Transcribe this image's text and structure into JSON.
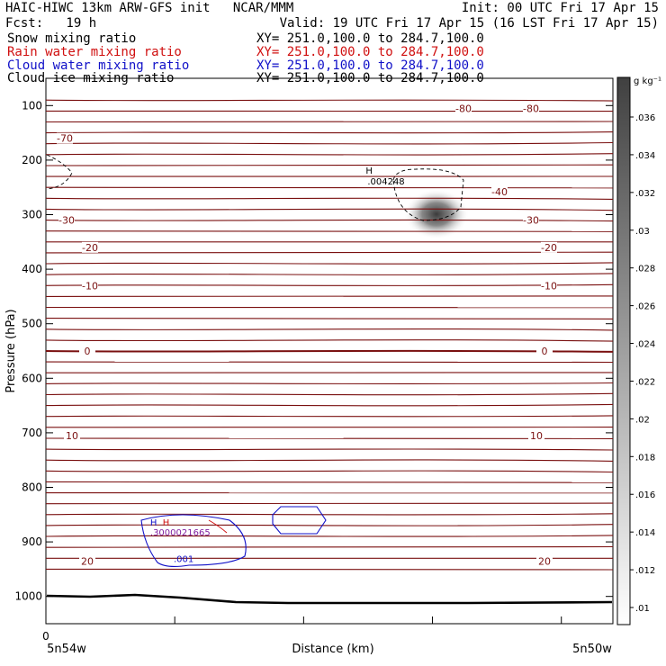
{
  "header": {
    "title": "HAIC-HIWC 13km ARW-GFS init   NCAR/MMM",
    "init": "Init: 00 UTC Fri 17 Apr 15",
    "fcst": "Fcst:   19 h",
    "valid": "Valid: 19 UTC Fri 17 Apr 15 (16 LST Fri 17 Apr 15)"
  },
  "fields": [
    {
      "name": "Snow mixing ratio",
      "xy": "XY= 251.0,100.0 to 284.7,100.0",
      "color": "#000000"
    },
    {
      "name": "Rain water mixing ratio",
      "xy": "XY= 251.0,100.0 to 284.7,100.0",
      "color": "#d01010"
    },
    {
      "name": "Cloud water mixing ratio",
      "xy": "XY= 251.0,100.0 to 284.7,100.0",
      "color": "#1010c8"
    },
    {
      "name": "Cloud ice mixing ratio",
      "xy": "XY= 251.0,100.0 to 284.7,100.0",
      "color": "#000000"
    }
  ],
  "chart_data": {
    "type": "contour",
    "xlabel": "Distance (km)",
    "ylabel": "Pressure (hPa)",
    "x_start_label": "0",
    "x_left_label": "5n54w",
    "x_right_label": "5n50w",
    "ylim": [
      1050,
      50
    ],
    "y_ticks": [
      100,
      200,
      300,
      400,
      500,
      600,
      700,
      800,
      900,
      1000
    ],
    "colorbar": {
      "unit": "g kg⁻¹",
      "levels": [
        ".01",
        ".012",
        ".014",
        ".016",
        ".018",
        ".02",
        ".022",
        ".024",
        ".026",
        ".028",
        ".03",
        ".032",
        ".034",
        ".036"
      ]
    },
    "temperature_contours": [
      {
        "value": "-80",
        "pressure": 105
      },
      {
        "value": "-70",
        "pressure": 160
      },
      {
        "value": "-40",
        "pressure": 258
      },
      {
        "value": "-30",
        "pressure": 310
      },
      {
        "value": "-20",
        "pressure": 360
      },
      {
        "value": "-10",
        "pressure": 430
      },
      {
        "value": "0",
        "pressure": 550
      },
      {
        "value": "10",
        "pressure": 705
      },
      {
        "value": "20",
        "pressure": 935
      }
    ],
    "annotations": [
      {
        "text": "H",
        "color": "#000000",
        "pressure": 225,
        "x_frac": 0.57
      },
      {
        "text": ".004248",
        "color": "#000000",
        "pressure": 245,
        "x_frac": 0.6
      },
      {
        "text": "H",
        "color": "#1010c8",
        "pressure": 870,
        "x_frac": 0.19
      },
      {
        "text": "H",
        "color": "#d01010",
        "pressure": 870,
        "x_frac": 0.212
      },
      {
        "text": ".3000021665",
        "color": "#8020a0",
        "pressure": 888,
        "x_frac": 0.237
      },
      {
        "text": ".001",
        "color": "#1010c8",
        "pressure": 937,
        "x_frac": 0.243
      }
    ]
  }
}
